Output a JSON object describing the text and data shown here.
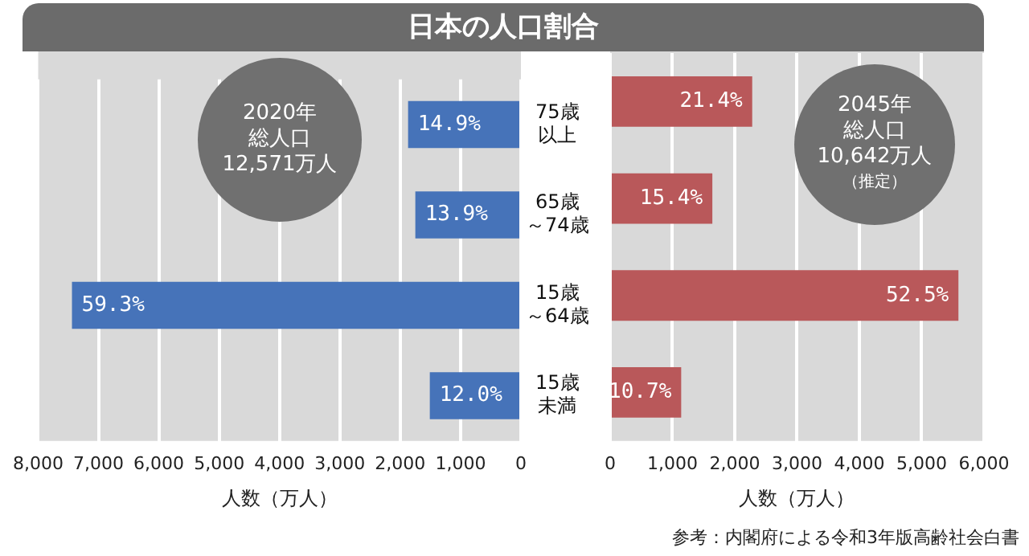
{
  "chart_data": [
    {
      "type": "bar",
      "orientation": "horizontal",
      "title": "日本の人口割合",
      "xlabel": "人数（万人）",
      "categories": [
        "75歳以上",
        "65歳～74歳",
        "15歳～64歳",
        "15歳未満"
      ],
      "series": [
        {
          "color": "#4673b9",
          "values": [
            1870,
            1750,
            7440,
            1510
          ]
        }
      ],
      "xlim": [
        8000,
        0
      ],
      "xticks": [
        {
          "value": 8000,
          "label": "8,000"
        },
        {
          "value": 7000,
          "label": "7,000"
        },
        {
          "value": 6000,
          "label": "6,000"
        },
        {
          "value": 5000,
          "label": "5,000"
        },
        {
          "value": 4000,
          "label": "4,000"
        },
        {
          "value": 3000,
          "label": "3,000"
        },
        {
          "value": 2000,
          "label": "2,000"
        },
        {
          "value": 1000,
          "label": "1,000"
        },
        0
      ],
      "grid": "x",
      "annotations": [
        "2020年",
        "総人口",
        "12,571万人",
        {
          "text": "14.9%",
          "x": 1870,
          "y": "75歳以上"
        },
        {
          "text": "13.9%",
          "x": 1750,
          "y": "65歳～74歳"
        },
        {
          "text": "59.3%",
          "x": 7440,
          "y": "15歳～64歳"
        },
        {
          "text": "12.0%",
          "x": 1510,
          "y": "15歳未満"
        }
      ]
    },
    {
      "type": "bar",
      "orientation": "horizontal",
      "xlabel": "人数（万人）",
      "categories": [
        null,
        null,
        null,
        null
      ],
      "tick_labels": "x",
      "series": [
        {
          "color": "#b9585a",
          "values": [
            2280,
            1640,
            5590,
            1140
          ]
        }
      ],
      "xlim": [
        0,
        6000
      ],
      "xticks": [
        0,
        {
          "value": 1000,
          "label": "1,000"
        },
        {
          "value": 2000,
          "label": "2,000"
        },
        {
          "value": 3000,
          "label": "3,000"
        },
        {
          "value": 4000,
          "label": "4,000"
        },
        {
          "value": 5000,
          "label": "5,000"
        },
        {
          "value": 6000,
          "label": "6,000"
        }
      ],
      "grid": "x",
      "annotations": [
        "2045年",
        "総人口",
        "10,642万人",
        "（推定）",
        "参考：内閣府による令和3年版高齢社会白書",
        {
          "text": "21.4%",
          "x": 2280
        },
        {
          "text": "15.4%",
          "x": 1640
        },
        {
          "text": "52.5%",
          "x": 5590
        },
        {
          "text": "10.7%",
          "x": 1140
        }
      ]
    }
  ]
}
